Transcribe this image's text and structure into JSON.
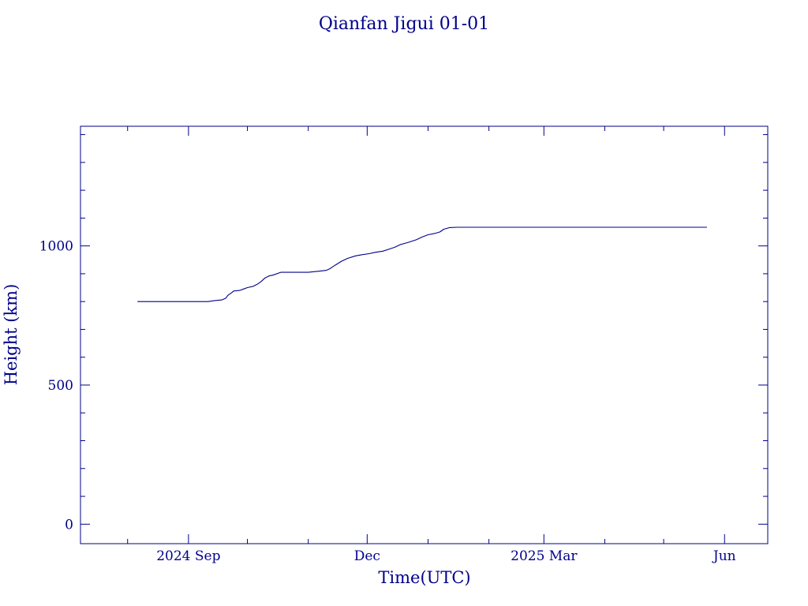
{
  "chart_data": {
    "type": "line",
    "title": "Qianfan Jigui 01-01",
    "xlabel": "Time(UTC)",
    "ylabel": "Height (km)",
    "x_tick_labels": [
      {
        "date": "2024-09-01",
        "label": "2024 Sep"
      },
      {
        "date": "2024-12-01",
        "label": "Dec"
      },
      {
        "date": "2025-03-01",
        "label": "2025 Mar"
      },
      {
        "date": "2025-06-01",
        "label": "Jun"
      }
    ],
    "y_tick_labels": [
      {
        "value": 0,
        "label": "0"
      },
      {
        "value": 500,
        "label": "500"
      },
      {
        "value": 1000,
        "label": "1000"
      }
    ],
    "xlim": [
      "2024-07-08",
      "2025-06-23"
    ],
    "ylim": [
      -70,
      1430
    ],
    "line_color": "#00008b",
    "series": [
      {
        "points": [
          [
            "2024-08-06",
            800
          ],
          [
            "2024-09-11",
            800
          ],
          [
            "2024-09-14",
            803
          ],
          [
            "2024-09-18",
            806
          ],
          [
            "2024-09-20",
            812
          ],
          [
            "2024-09-21",
            822
          ],
          [
            "2024-09-23",
            832
          ],
          [
            "2024-09-24",
            838
          ],
          [
            "2024-09-27",
            840
          ],
          [
            "2024-09-29",
            845
          ],
          [
            "2024-10-01",
            850
          ],
          [
            "2024-10-04",
            855
          ],
          [
            "2024-10-06",
            862
          ],
          [
            "2024-10-08",
            872
          ],
          [
            "2024-10-10",
            885
          ],
          [
            "2024-10-12",
            892
          ],
          [
            "2024-10-14",
            895
          ],
          [
            "2024-10-18",
            905
          ],
          [
            "2024-10-25",
            905
          ],
          [
            "2024-11-01",
            905
          ],
          [
            "2024-11-05",
            908
          ],
          [
            "2024-11-10",
            912
          ],
          [
            "2024-11-12",
            918
          ],
          [
            "2024-11-15",
            932
          ],
          [
            "2024-11-18",
            945
          ],
          [
            "2024-11-21",
            955
          ],
          [
            "2024-11-25",
            964
          ],
          [
            "2024-11-28",
            968
          ],
          [
            "2024-12-02",
            972
          ],
          [
            "2024-12-05",
            977
          ],
          [
            "2024-12-09",
            981
          ],
          [
            "2024-12-12",
            988
          ],
          [
            "2024-12-15",
            995
          ],
          [
            "2024-12-18",
            1005
          ],
          [
            "2024-12-22",
            1013
          ],
          [
            "2024-12-26",
            1022
          ],
          [
            "2024-12-29",
            1032
          ],
          [
            "2025-01-01",
            1040
          ],
          [
            "2025-01-04",
            1044
          ],
          [
            "2025-01-07",
            1050
          ],
          [
            "2025-01-09",
            1060
          ],
          [
            "2025-01-12",
            1066
          ],
          [
            "2025-01-16",
            1067
          ],
          [
            "2025-02-15",
            1067
          ],
          [
            "2025-03-15",
            1067
          ],
          [
            "2025-04-15",
            1067
          ],
          [
            "2025-05-23",
            1067
          ]
        ]
      }
    ]
  }
}
